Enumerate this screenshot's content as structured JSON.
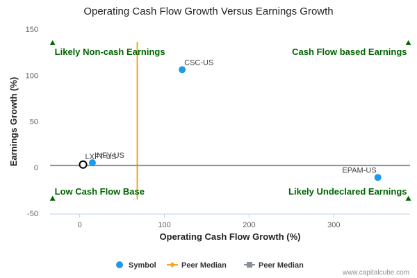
{
  "chart_data": {
    "type": "scatter",
    "title": "Operating Cash Flow Growth Versus Earnings Growth",
    "xlabel": "Operating Cash Flow Growth (%)",
    "ylabel": "Earnings Growth (%)",
    "xlim": [
      -35,
      390
    ],
    "ylim": [
      -50,
      150
    ],
    "xticks": [
      0,
      100,
      200,
      300
    ],
    "yticks": [
      -50,
      0,
      50,
      100,
      150
    ],
    "grid": false,
    "legend_position": "bottom-center",
    "series": [
      {
        "name": "Symbol",
        "color": "#1e9be8",
        "points": [
          {
            "label": "CSC-US",
            "x": 121,
            "y": 106
          },
          {
            "label": "INFY-US",
            "x": 15,
            "y": 5
          },
          {
            "label": "EPAM-US",
            "x": 352,
            "y": -11
          }
        ]
      },
      {
        "name": "Peer Median",
        "color": "#f5a623",
        "orientation": "vertical",
        "x": 68,
        "y_range": [
          -35,
          136
        ]
      },
      {
        "name": "Peer Median",
        "color": "#8a8f99",
        "orientation": "horizontal",
        "y": 2,
        "x_range": [
          -35,
          390
        ]
      }
    ],
    "highlight": {
      "label": "LXFT-US",
      "x": 4,
      "y": 3
    },
    "quadrants": [
      {
        "text": "Likely Non-cash Earnings",
        "corner": "top-left",
        "x": -32,
        "y": 135
      },
      {
        "text": "Cash Flow based Earnings",
        "corner": "top-right",
        "x": 388,
        "y": 135
      },
      {
        "text": "Low Cash Flow Base",
        "corner": "bottom-left",
        "x": -32,
        "y": -34
      },
      {
        "text": "Likely Undeclared Earnings",
        "corner": "bottom-right",
        "x": 388,
        "y": -34
      }
    ],
    "quadrant_color": "#006400",
    "credits": "www.capitalcube.com"
  }
}
